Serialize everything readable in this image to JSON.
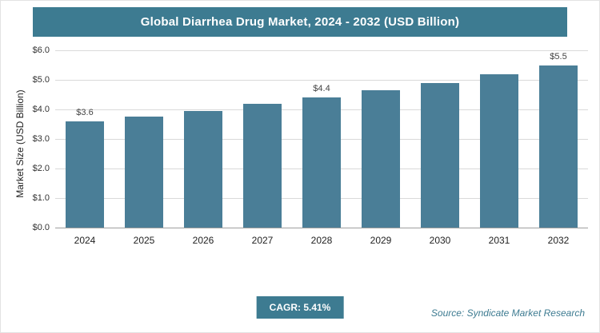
{
  "header": {
    "title": "Global Diarrhea Drug Market, 2024 - 2032 (USD Billion)"
  },
  "chart_data": {
    "type": "bar",
    "title": "Global Diarrhea Drug Market, 2024 - 2032 (USD Billion)",
    "categories": [
      "2024",
      "2025",
      "2026",
      "2027",
      "2028",
      "2029",
      "2030",
      "2031",
      "2032"
    ],
    "values": [
      3.6,
      3.75,
      3.95,
      4.2,
      4.4,
      4.65,
      4.9,
      5.2,
      5.5
    ],
    "value_labels": [
      "$3.6",
      "",
      "",
      "",
      "$4.4",
      "",
      "",
      "",
      "$5.5"
    ],
    "xlabel": "",
    "ylabel": "Market Size (USD Billion)",
    "ylim": [
      0,
      6
    ],
    "yticks": [
      0,
      1,
      2,
      3,
      4,
      5,
      6
    ],
    "ytick_labels": [
      "$0.0",
      "$1.0",
      "$2.0",
      "$3.0",
      "$4.0",
      "$5.0",
      "$6.0"
    ],
    "grid": true,
    "legend": false,
    "bar_color": "#4a7e97"
  },
  "footer": {
    "cagr_label": "CAGR: 5.41%",
    "source": "Source: Syndicate Market Research"
  },
  "colors": {
    "accent_teal": "#3d7b91",
    "bar": "#4a7e97",
    "gridline": "#d9d9d9"
  }
}
